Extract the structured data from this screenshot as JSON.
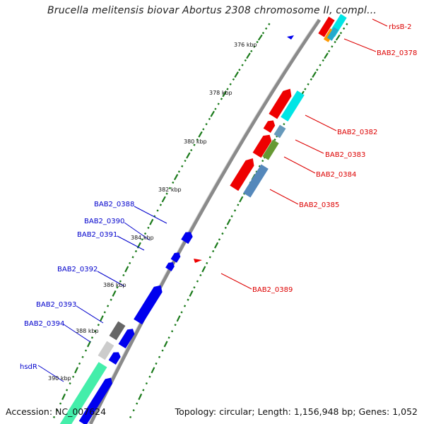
{
  "title": "Brucella melitensis biovar Abortus 2308 chromosome II, compl...",
  "footer": {
    "accession": "Accession: NC_007624",
    "topology": "Topology: circular; Length: 1,156,948 bp; Genes: 1,052"
  },
  "kbp_labels": [
    "376 kbp",
    "378 kbp",
    "380 kbp",
    "382 kbp",
    "384 kbp",
    "386 kbp",
    "388 kbp",
    "390 kbp"
  ],
  "gene_labels": {
    "right": [
      "rbsB-2",
      "BAB2_0378",
      "BAB2_0382",
      "BAB2_0383",
      "BAB2_0384",
      "BAB2_0385",
      "BAB2_0389"
    ],
    "left": [
      "BAB2_0388",
      "BAB2_0390",
      "BAB2_0391",
      "BAB2_0392",
      "BAB2_0393",
      "BAB2_0394",
      "hsdR"
    ]
  },
  "colors": {
    "forward_label": "#dd0000",
    "reverse_label": "#0000cc",
    "backbone": "#8a8a8a",
    "tick": "#1a7a1a"
  }
}
